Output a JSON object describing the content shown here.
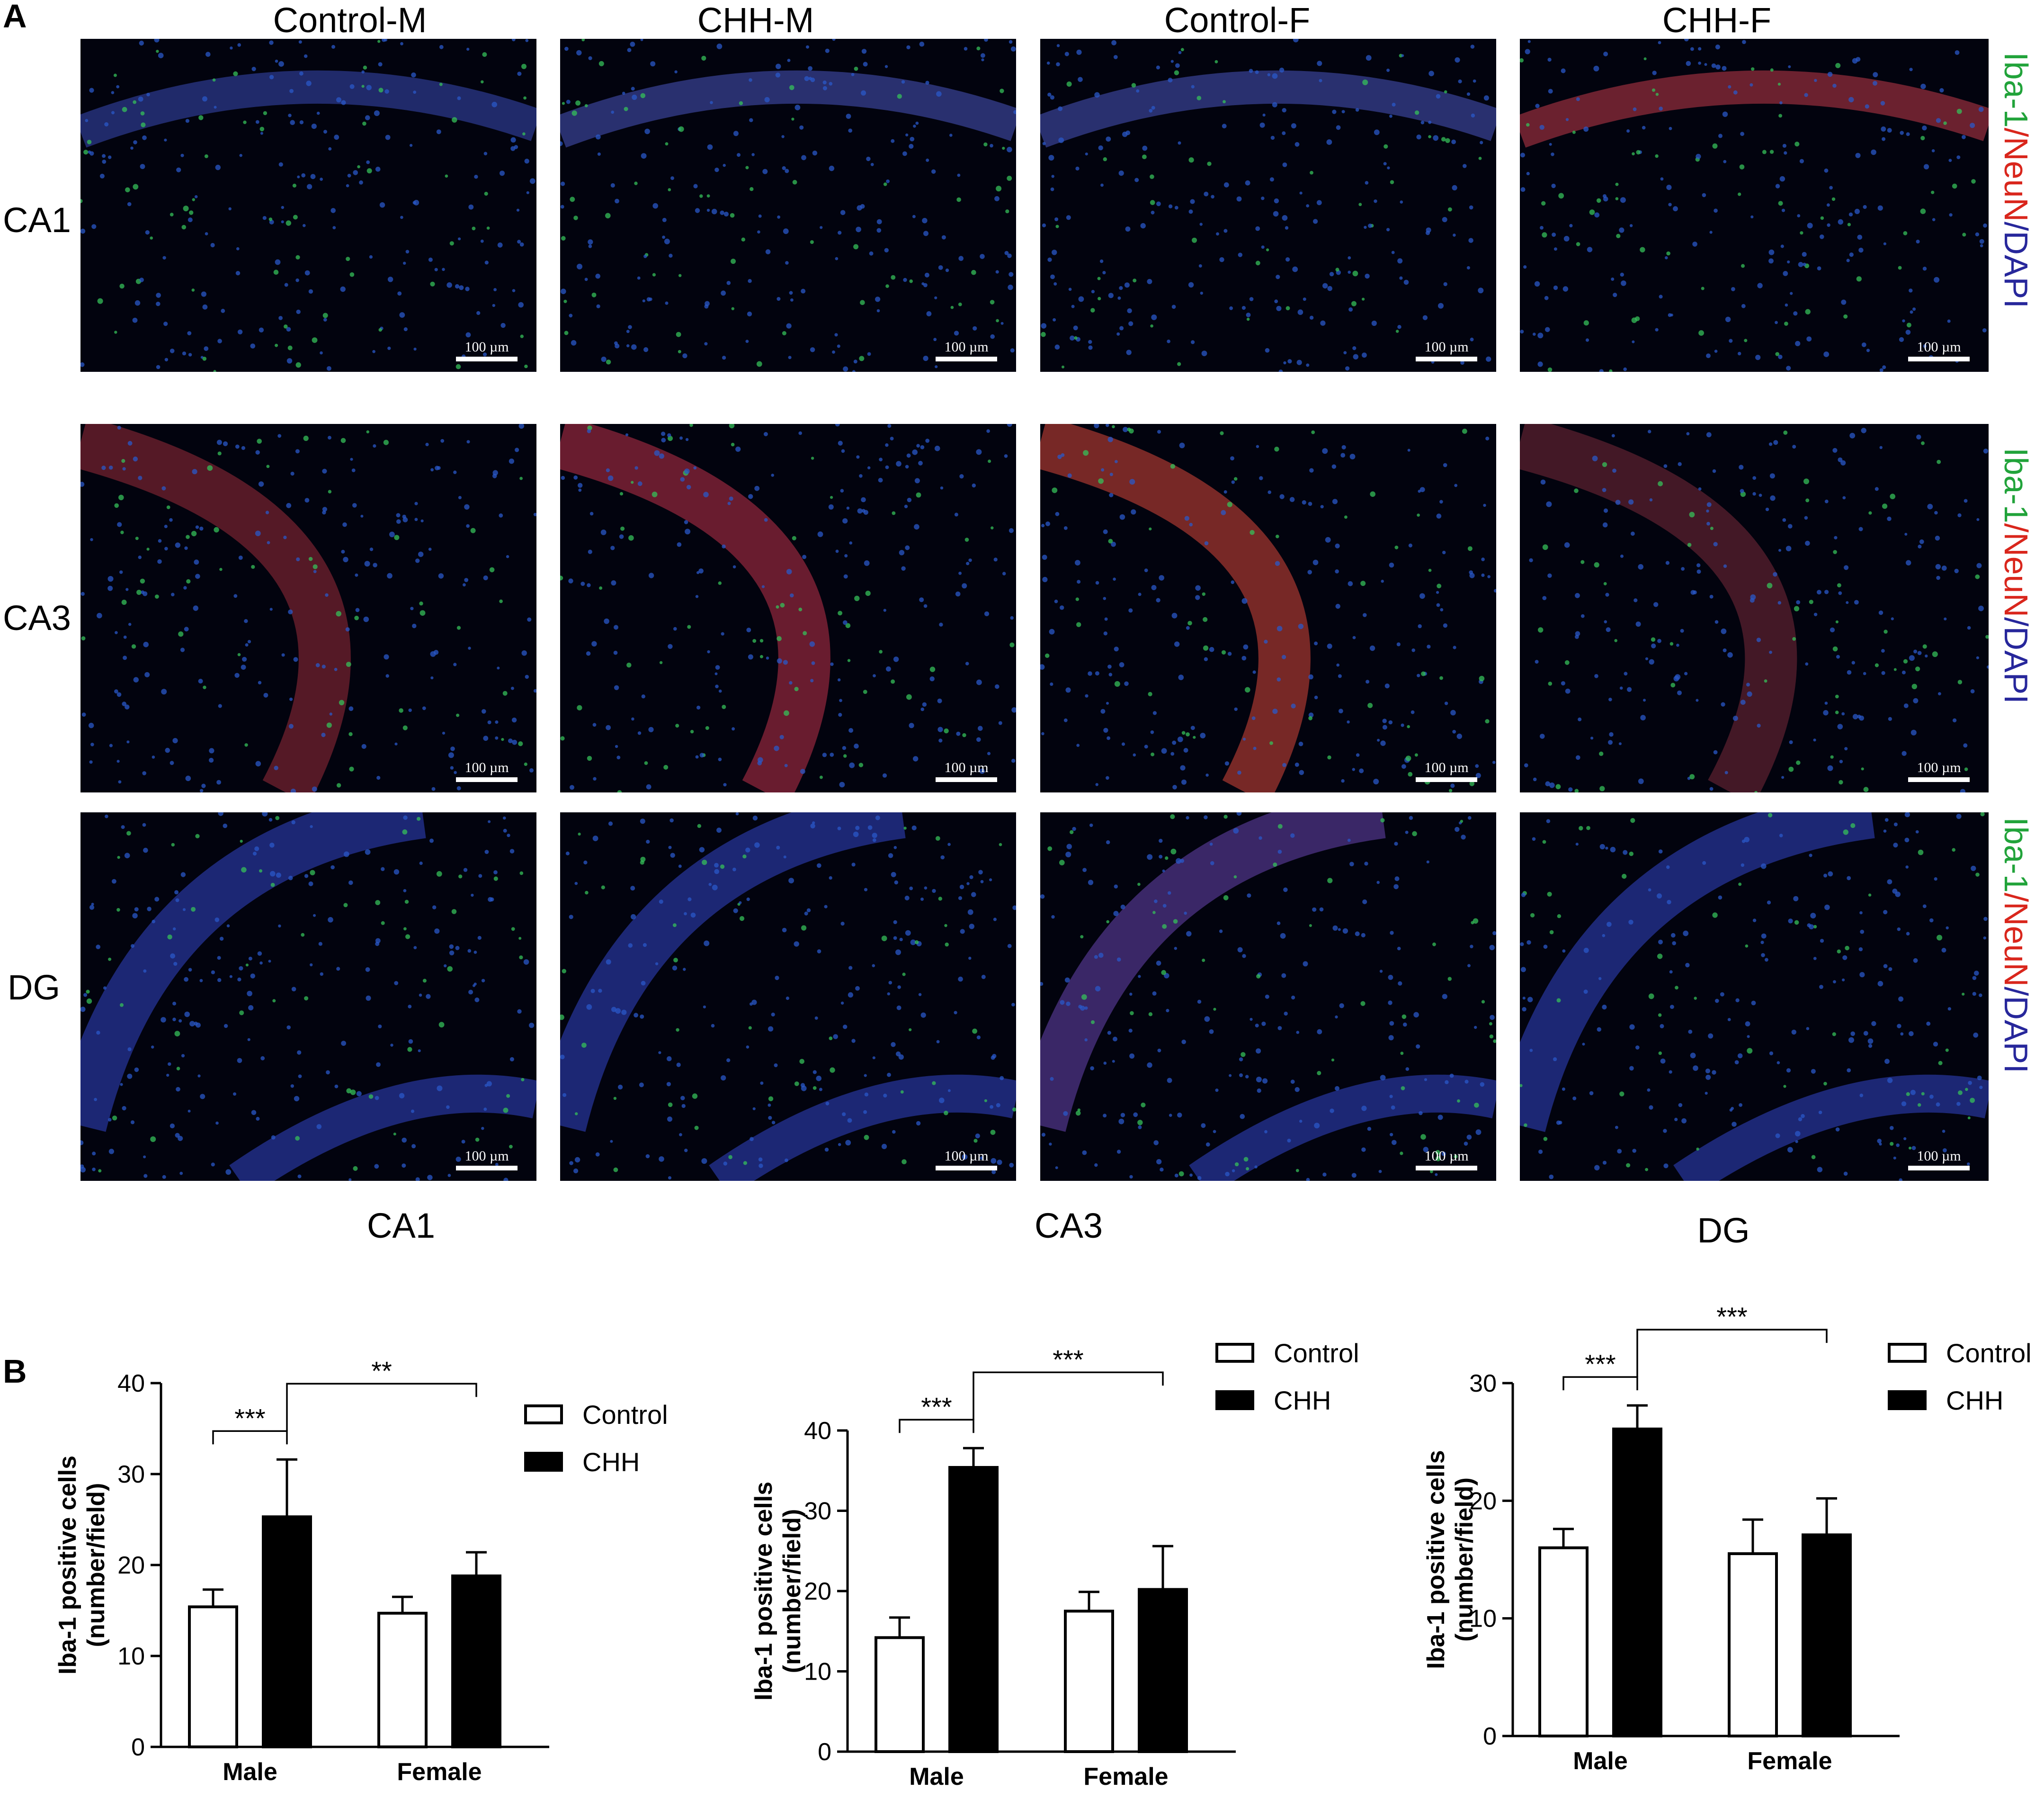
{
  "panel_labels": {
    "a": "A",
    "b": "B"
  },
  "columns": [
    "Control-M",
    "CHH-M",
    "Control-F",
    "CHH-F"
  ],
  "rows": [
    "CA1",
    "CA3",
    "DG"
  ],
  "scale_bar": "100 µm",
  "stain_label": {
    "iba1": "Iba-1",
    "sep1": "/",
    "neun": "NeuN",
    "sep2": "/",
    "dapi": "DAPI"
  },
  "colors": {
    "iba1": "#21a33a",
    "neun": "#d9261c",
    "dapi": "#27279b",
    "control_fill": "#ffffff",
    "chh_fill": "#000000"
  },
  "region_labels": [
    "CA1",
    "CA3",
    "DG"
  ],
  "chart_data": [
    {
      "type": "bar",
      "region": "CA1",
      "categories": [
        "Male",
        "Female"
      ],
      "series": [
        {
          "name": "Control",
          "values": [
            15.4,
            14.7
          ],
          "errors": [
            1.9,
            1.8
          ]
        },
        {
          "name": "CHH",
          "values": [
            25.3,
            18.8
          ],
          "errors": [
            6.3,
            2.6
          ]
        }
      ],
      "ylabel": "Iba-1 positive cells (number/field)",
      "ylim": [
        0,
        40
      ],
      "yticks": [
        0,
        10,
        20,
        30,
        40
      ],
      "legend_position": "right",
      "significance": [
        {
          "between": "Male Control vs Male CHH",
          "label": "***"
        },
        {
          "between": "Male CHH vs Female CHH",
          "label": "**"
        }
      ]
    },
    {
      "type": "bar",
      "region": "CA3",
      "categories": [
        "Male",
        "Female"
      ],
      "series": [
        {
          "name": "Control",
          "values": [
            14.2,
            17.5
          ],
          "errors": [
            2.5,
            2.4
          ]
        },
        {
          "name": "CHH",
          "values": [
            35.4,
            20.2
          ],
          "errors": [
            2.4,
            5.4
          ]
        }
      ],
      "ylabel": "Iba-1 positive cells (number/field)",
      "ylim": [
        0,
        40
      ],
      "yticks": [
        0,
        10,
        20,
        30,
        40
      ],
      "legend_position": "right",
      "significance": [
        {
          "between": "Male Control vs Male CHH",
          "label": "***"
        },
        {
          "between": "Male CHH vs Female CHH",
          "label": "***"
        }
      ]
    },
    {
      "type": "bar",
      "region": "DG",
      "categories": [
        "Male",
        "Female"
      ],
      "series": [
        {
          "name": "Control",
          "values": [
            16.0,
            15.5
          ],
          "errors": [
            1.6,
            2.9
          ]
        },
        {
          "name": "CHH",
          "values": [
            26.1,
            17.1
          ],
          "errors": [
            2.0,
            3.1
          ]
        }
      ],
      "ylabel": "Iba-1 positive cells (number/field)",
      "ylim": [
        0,
        30
      ],
      "yticks": [
        0,
        10,
        20,
        30
      ],
      "legend_position": "right",
      "significance": [
        {
          "between": "Male Control vs Male CHH",
          "label": "***"
        },
        {
          "between": "Male CHH vs Female CHH",
          "label": "***"
        }
      ]
    }
  ]
}
